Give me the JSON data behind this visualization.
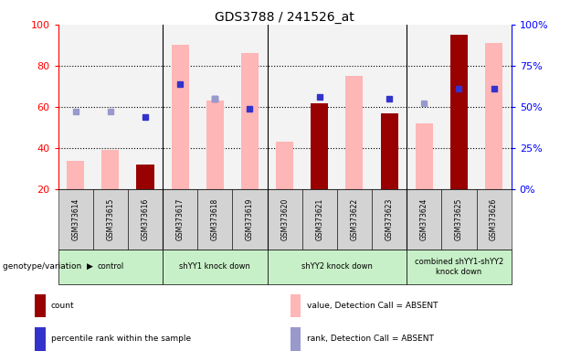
{
  "title": "GDS3788 / 241526_at",
  "samples": [
    "GSM373614",
    "GSM373615",
    "GSM373616",
    "GSM373617",
    "GSM373618",
    "GSM373619",
    "GSM373620",
    "GSM373621",
    "GSM373622",
    "GSM373623",
    "GSM373624",
    "GSM373625",
    "GSM373626"
  ],
  "count_values": [
    null,
    null,
    32,
    null,
    null,
    null,
    null,
    62,
    null,
    57,
    null,
    95,
    null
  ],
  "pink_bar_values": [
    34,
    39,
    null,
    90,
    63,
    86,
    43,
    null,
    75,
    null,
    52,
    null,
    91
  ],
  "blue_square_values": [
    null,
    null,
    55,
    71,
    64,
    59,
    null,
    65,
    null,
    64,
    null,
    69,
    69
  ],
  "light_blue_square_values": [
    58,
    58,
    null,
    null,
    64,
    null,
    null,
    null,
    null,
    null,
    62,
    null,
    null
  ],
  "ylim_left": [
    20,
    100
  ],
  "ylim_right": [
    0,
    100
  ],
  "right_ticks": [
    0,
    25,
    50,
    75,
    100
  ],
  "right_tick_labels": [
    "0%",
    "25%",
    "50%",
    "75%",
    "100%"
  ],
  "left_ticks": [
    20,
    40,
    60,
    80,
    100
  ],
  "dotted_lines": [
    40,
    60,
    80
  ],
  "pink_bar_color": "#ffb6b6",
  "red_bar_color": "#990000",
  "blue_sq_color": "#3333cc",
  "light_blue_sq_color": "#9999cc",
  "background_label": "#d3d3d3",
  "background_group": "#c8f0c8",
  "groups": [
    {
      "label": "control",
      "start": 0,
      "end": 2
    },
    {
      "label": "shYY1 knock down",
      "start": 3,
      "end": 5
    },
    {
      "label": "shYY2 knock down",
      "start": 6,
      "end": 9
    },
    {
      "label": "combined shYY1-shYY2\nknock down",
      "start": 10,
      "end": 12
    }
  ],
  "legend_labels": [
    "count",
    "percentile rank within the sample",
    "value, Detection Call = ABSENT",
    "rank, Detection Call = ABSENT"
  ],
  "legend_colors": [
    "#990000",
    "#3333cc",
    "#ffb6b6",
    "#9999cc"
  ]
}
